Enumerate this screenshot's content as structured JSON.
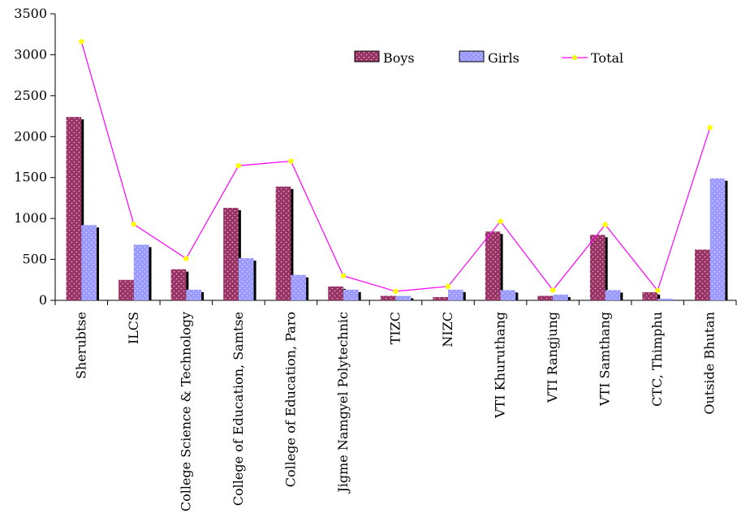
{
  "chart_data": {
    "type": "bar",
    "categories": [
      "Sherubtse",
      "ILCS",
      "College Science & Technology",
      "College of Education, Samtse",
      "College of Education, Paro",
      "Jigme Namgyel Polytechnic",
      "TIZC",
      "NIZC",
      "VTI Khuruthang",
      "VTI Rangjung",
      "VTI Samthang",
      "CTC, Thimphu",
      "Outside Bhutan"
    ],
    "series": [
      {
        "name": "Boys",
        "type": "bar",
        "color": "#993366",
        "values": [
          2240,
          250,
          380,
          1130,
          1390,
          170,
          55,
          40,
          840,
          55,
          800,
          100,
          620
        ]
      },
      {
        "name": "Girls",
        "type": "bar",
        "color": "#9999ff",
        "values": [
          920,
          680,
          130,
          515,
          310,
          130,
          55,
          130,
          125,
          70,
          125,
          20,
          1490
        ]
      },
      {
        "name": "Total",
        "type": "line",
        "color": "#ff00ff",
        "marker_color": "#ffff00",
        "values": [
          3160,
          930,
          510,
          1645,
          1700,
          300,
          110,
          170,
          965,
          125,
          925,
          120,
          2110
        ]
      }
    ],
    "ylim": [
      0,
      3500
    ],
    "yticks": [
      0,
      500,
      1000,
      1500,
      2000,
      2500,
      3000,
      3500
    ],
    "xlabel": "",
    "ylabel": "",
    "title": "",
    "grid": false,
    "legend": "top-right"
  }
}
